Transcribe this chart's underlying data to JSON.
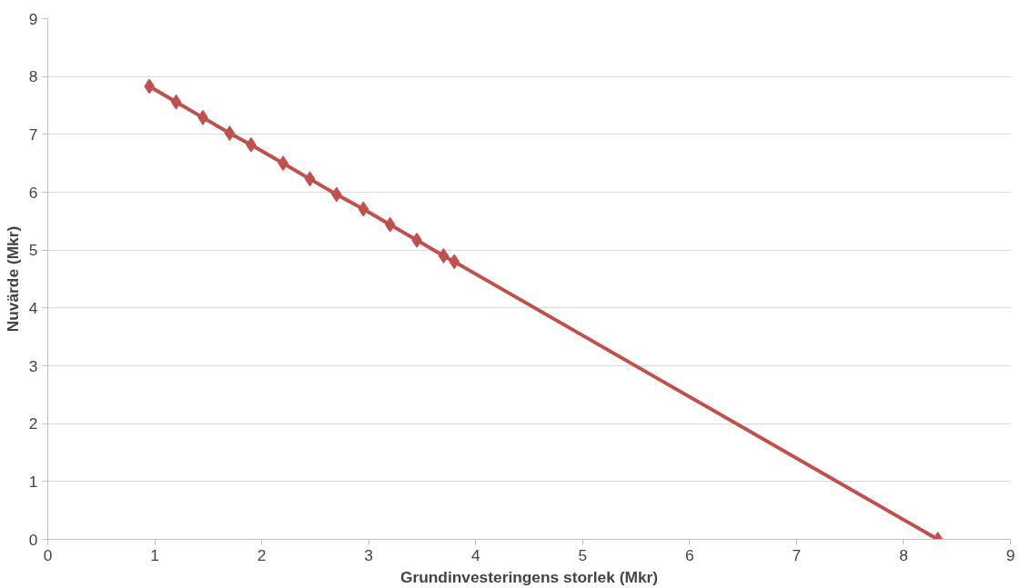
{
  "chart_data": {
    "type": "line",
    "xlabel": "Grundinvesteringens storlek (Mkr)",
    "ylabel": "Nuvärde (Mkr)",
    "series": [
      {
        "color": "#c0504d",
        "x": [
          0.95,
          1.2,
          1.45,
          1.7,
          1.9,
          2.2,
          2.45,
          2.7,
          2.95,
          3.2,
          3.45,
          3.7,
          3.8,
          8.32
        ],
        "values": [
          7.83,
          7.56,
          7.29,
          7.02,
          6.82,
          6.5,
          6.23,
          5.96,
          5.71,
          5.44,
          5.17,
          4.9,
          4.8,
          0
        ],
        "marker": "diamond"
      }
    ],
    "xlim": [
      0,
      9
    ],
    "xticks": [
      0,
      1,
      2,
      3,
      4,
      5,
      6,
      7,
      8,
      9
    ],
    "ylim": [
      0,
      9
    ],
    "yticks": [
      0,
      1,
      2,
      3,
      4,
      5,
      6,
      7,
      8,
      9
    ],
    "grid": "y",
    "line_style": "solid"
  }
}
